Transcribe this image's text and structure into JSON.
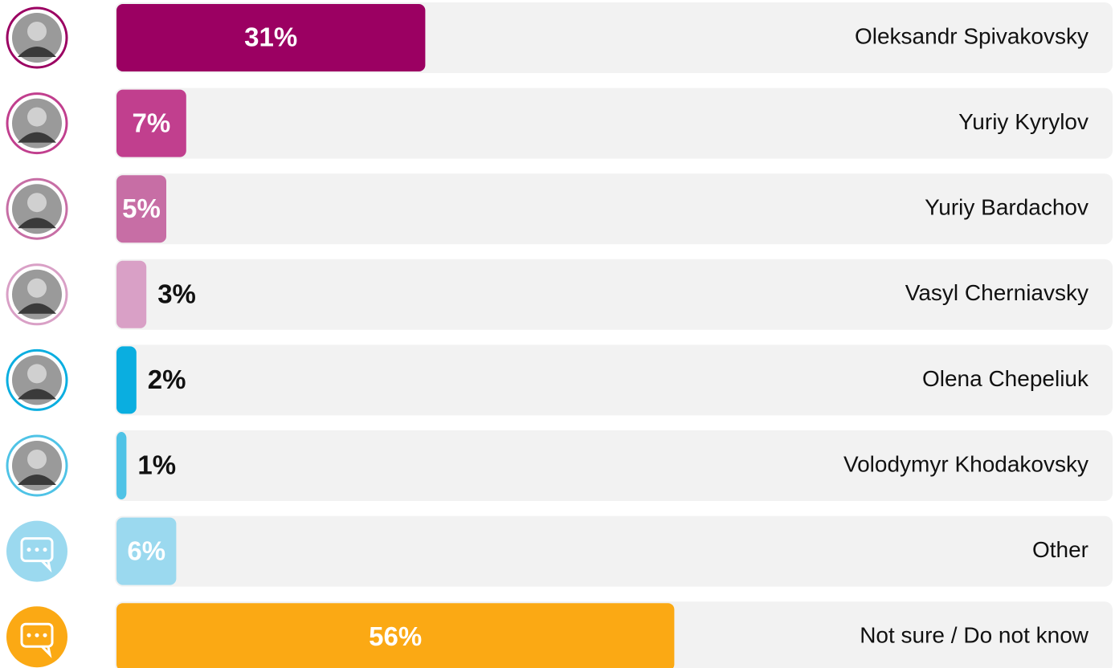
{
  "chart_data": {
    "type": "bar",
    "orientation": "horizontal",
    "categories": [
      "Oleksandr Spivakovsky",
      "Yuriy Kyrylov",
      "Yuriy Bardachov",
      "Vasyl Cherniavsky",
      "Olena Chepeliuk",
      "Volodymyr Khodakovsky",
      "Other",
      "Not sure / Do not know"
    ],
    "values": [
      31,
      7,
      5,
      3,
      2,
      1,
      6,
      56
    ],
    "value_labels": [
      "31%",
      "7%",
      "5%",
      "3%",
      "2%",
      "1%",
      "6%",
      "56%"
    ],
    "colors": [
      "#9b0062",
      "#c13f8e",
      "#c76ea5",
      "#d9a0c6",
      "#0aaee0",
      "#4fc3e6",
      "#9bd9ef",
      "#fba914"
    ],
    "xlim": [
      0,
      100
    ]
  }
}
